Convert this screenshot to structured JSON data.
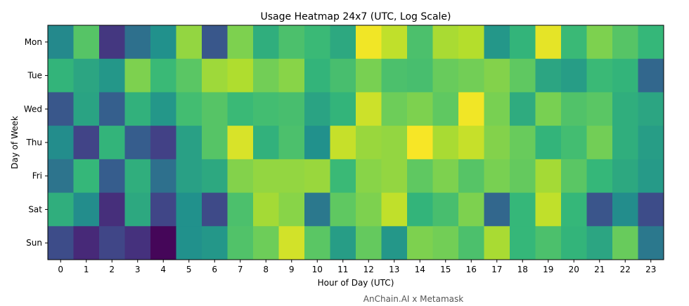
{
  "chart_data": {
    "type": "heatmap",
    "title": "Usage Heatmap 24x7 (UTC, Log Scale)",
    "xlabel": "Hour of Day (UTC)",
    "ylabel": "Day of Week",
    "x_categories": [
      "0",
      "1",
      "2",
      "3",
      "4",
      "5",
      "6",
      "7",
      "8",
      "9",
      "10",
      "11",
      "12",
      "13",
      "14",
      "15",
      "16",
      "17",
      "18",
      "19",
      "20",
      "21",
      "22",
      "23"
    ],
    "y_categories": [
      "Mon",
      "Tue",
      "Wed",
      "Thu",
      "Fri",
      "Sat",
      "Sun"
    ],
    "colormap": "viridis",
    "scale": "log",
    "values": [
      [
        0.48,
        0.7,
        0.2,
        0.42,
        0.5,
        0.82,
        0.34,
        0.78,
        0.6,
        0.68,
        0.64,
        0.58,
        0.98,
        0.9,
        0.68,
        0.86,
        0.88,
        0.52,
        0.62,
        0.96,
        0.64,
        0.78,
        0.7,
        0.63
      ],
      [
        0.62,
        0.57,
        0.52,
        0.78,
        0.64,
        0.71,
        0.84,
        0.87,
        0.76,
        0.8,
        0.62,
        0.67,
        0.77,
        0.68,
        0.67,
        0.74,
        0.76,
        0.79,
        0.72,
        0.57,
        0.54,
        0.64,
        0.62,
        0.4
      ],
      [
        0.34,
        0.56,
        0.38,
        0.61,
        0.52,
        0.66,
        0.7,
        0.64,
        0.66,
        0.67,
        0.56,
        0.62,
        0.92,
        0.75,
        0.78,
        0.72,
        0.98,
        0.77,
        0.59,
        0.77,
        0.69,
        0.71,
        0.6,
        0.57
      ],
      [
        0.49,
        0.25,
        0.62,
        0.37,
        0.24,
        0.55,
        0.7,
        0.94,
        0.61,
        0.68,
        0.5,
        0.91,
        0.83,
        0.82,
        0.99,
        0.86,
        0.91,
        0.79,
        0.74,
        0.62,
        0.66,
        0.76,
        0.6,
        0.54
      ],
      [
        0.43,
        0.63,
        0.37,
        0.6,
        0.42,
        0.55,
        0.58,
        0.79,
        0.82,
        0.82,
        0.83,
        0.64,
        0.8,
        0.82,
        0.72,
        0.78,
        0.7,
        0.77,
        0.73,
        0.85,
        0.71,
        0.63,
        0.58,
        0.53
      ],
      [
        0.6,
        0.49,
        0.17,
        0.58,
        0.26,
        0.5,
        0.28,
        0.68,
        0.85,
        0.8,
        0.44,
        0.72,
        0.78,
        0.9,
        0.62,
        0.67,
        0.78,
        0.4,
        0.63,
        0.9,
        0.63,
        0.33,
        0.49,
        0.29
      ],
      [
        0.29,
        0.15,
        0.26,
        0.18,
        0.02,
        0.5,
        0.52,
        0.69,
        0.75,
        0.93,
        0.71,
        0.54,
        0.73,
        0.52,
        0.78,
        0.76,
        0.68,
        0.86,
        0.63,
        0.68,
        0.62,
        0.57,
        0.74,
        0.44
      ]
    ],
    "footer": "AnChain.AI x Metamask"
  }
}
